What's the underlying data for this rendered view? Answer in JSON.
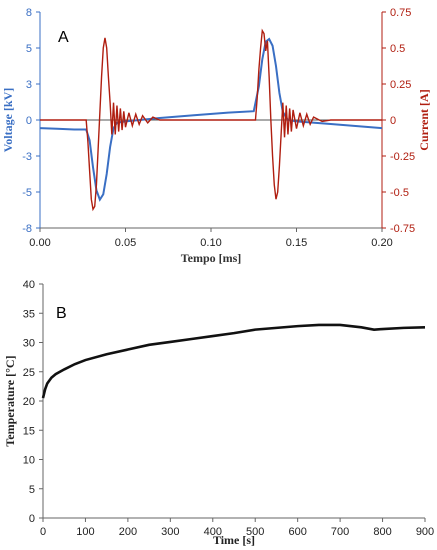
{
  "chart_data": [
    {
      "type": "line",
      "panel_label": "A",
      "xlabel": "Tempo [ms]",
      "ylabel_left": "Voltage [kV]",
      "ylabel_right": "Current [A]",
      "xlim": [
        0.0,
        0.2
      ],
      "ylim_left": [
        -8,
        8
      ],
      "ylim_right": [
        -0.75,
        0.75
      ],
      "x_ticks": [
        "0.00",
        "0.05",
        "0.10",
        "0.15",
        "0.20"
      ],
      "y_left_ticks": [
        "8",
        "5",
        "3",
        "0",
        "-3",
        "-5",
        "-8"
      ],
      "y_right_ticks": [
        "0.75",
        "0.5",
        "0.25",
        "0",
        "-0.25",
        "-0.5",
        "-0.75"
      ],
      "grid": false,
      "series": [
        {
          "name": "",
          "axis": "left",
          "color": "#3a6fc4",
          "x": [
            0.0,
            0.01,
            0.02,
            0.027,
            0.029,
            0.031,
            0.033,
            0.035,
            0.037,
            0.039,
            0.041,
            0.043,
            0.045,
            0.05,
            0.07,
            0.09,
            0.11,
            0.125,
            0.128,
            0.13,
            0.132,
            0.134,
            0.136,
            0.138,
            0.14,
            0.142,
            0.145,
            0.15,
            0.17,
            0.19,
            0.2
          ],
          "y": [
            -0.6,
            -0.65,
            -0.7,
            -0.7,
            -1.5,
            -3.5,
            -5.2,
            -5.9,
            -5.5,
            -4.0,
            -2.0,
            -0.6,
            -0.2,
            -0.1,
            0.15,
            0.35,
            0.55,
            0.65,
            2.5,
            4.5,
            5.8,
            6.0,
            5.5,
            4.0,
            2.0,
            0.6,
            0.0,
            -0.1,
            -0.3,
            -0.5,
            -0.6
          ]
        },
        {
          "name": "",
          "axis": "right",
          "color": "#b01e10",
          "x": [
            0.0,
            0.02,
            0.027,
            0.028,
            0.029,
            0.03,
            0.031,
            0.032,
            0.033,
            0.034,
            0.035,
            0.036,
            0.037,
            0.038,
            0.039,
            0.04,
            0.041,
            0.042,
            0.043,
            0.044,
            0.045,
            0.046,
            0.047,
            0.048,
            0.049,
            0.05,
            0.052,
            0.054,
            0.056,
            0.058,
            0.06,
            0.063,
            0.066,
            0.07,
            0.08,
            0.1,
            0.12,
            0.126,
            0.127,
            0.128,
            0.129,
            0.13,
            0.131,
            0.132,
            0.133,
            0.134,
            0.135,
            0.136,
            0.137,
            0.138,
            0.139,
            0.14,
            0.141,
            0.142,
            0.143,
            0.144,
            0.145,
            0.146,
            0.147,
            0.148,
            0.15,
            0.152,
            0.154,
            0.156,
            0.158,
            0.16,
            0.165,
            0.17,
            0.2
          ],
          "y": [
            0.0,
            0.0,
            0.0,
            -0.15,
            -0.35,
            -0.55,
            -0.62,
            -0.6,
            -0.45,
            -0.2,
            0.05,
            0.3,
            0.5,
            0.57,
            0.5,
            0.3,
            0.12,
            -0.1,
            0.12,
            -0.1,
            0.1,
            -0.08,
            0.08,
            -0.07,
            0.06,
            -0.05,
            0.05,
            -0.04,
            0.04,
            -0.03,
            0.03,
            -0.02,
            0.02,
            0.0,
            0.0,
            0.0,
            0.0,
            0.0,
            0.15,
            0.35,
            0.5,
            0.62,
            0.6,
            0.48,
            0.55,
            0.3,
            0.0,
            -0.25,
            -0.45,
            -0.55,
            -0.5,
            -0.32,
            -0.1,
            0.12,
            -0.12,
            0.1,
            -0.1,
            0.08,
            -0.08,
            0.07,
            -0.06,
            0.05,
            -0.04,
            0.04,
            -0.03,
            0.02,
            -0.01,
            0.0,
            0.0
          ]
        }
      ]
    },
    {
      "type": "line",
      "panel_label": "B",
      "xlabel": "Time [s]",
      "ylabel": "Temperature [°C]",
      "xlim": [
        0,
        900
      ],
      "ylim": [
        0,
        40
      ],
      "x_ticks": [
        "0",
        "100",
        "200",
        "300",
        "400",
        "500",
        "600",
        "700",
        "800",
        "900"
      ],
      "y_ticks": [
        "0",
        "5",
        "10",
        "15",
        "20",
        "25",
        "30",
        "35",
        "40"
      ],
      "grid": false,
      "series": [
        {
          "name": "",
          "color": "#111111",
          "x": [
            0,
            5,
            10,
            20,
            30,
            50,
            75,
            100,
            150,
            200,
            250,
            300,
            350,
            400,
            450,
            500,
            550,
            600,
            650,
            700,
            750,
            780,
            800,
            850,
            900
          ],
          "y": [
            20.5,
            22.0,
            23.0,
            24.0,
            24.6,
            25.4,
            26.3,
            27.0,
            28.0,
            28.8,
            29.6,
            30.1,
            30.6,
            31.1,
            31.6,
            32.2,
            32.5,
            32.8,
            33.0,
            33.0,
            32.6,
            32.2,
            32.3,
            32.5,
            32.6
          ]
        }
      ]
    }
  ]
}
